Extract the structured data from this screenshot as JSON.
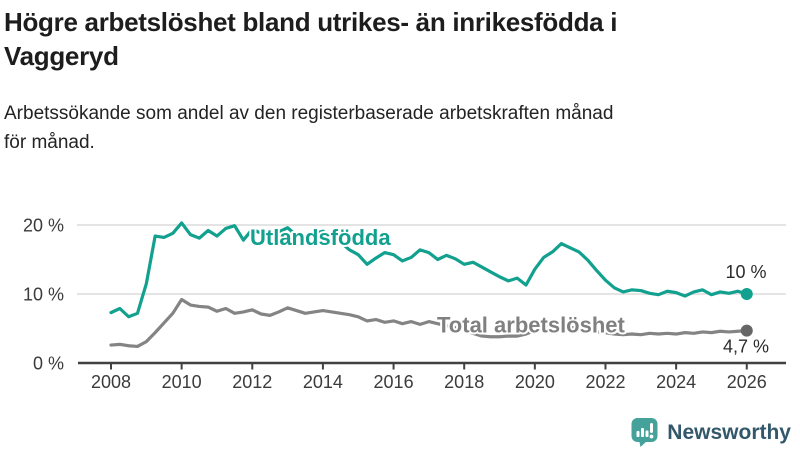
{
  "header": {
    "title_line1": "Högre arbetslöshet bland utrikes- än inrikesfödda i",
    "title_line2": "Vaggeryd",
    "subtitle_line1": "Arbetssökande som andel av den registerbaserade arbetskraften månad",
    "subtitle_line2": "för månad."
  },
  "chart_data": {
    "type": "line",
    "title": "Högre arbetslöshet bland utrikes- än inrikesfödda i Vaggeryd",
    "subtitle": "Arbetssökande som andel av den registerbaserade arbetskraften månad för månad.",
    "y_unit": "%",
    "ylim": [
      0,
      22
    ],
    "xlim": [
      2008,
      2026.2
    ],
    "grid": "horizontal",
    "y_ticks": [
      {
        "value": 20,
        "label": "20 %"
      },
      {
        "value": 10,
        "label": "10 %"
      },
      {
        "value": 0,
        "label": "0 %"
      }
    ],
    "x_ticks": [
      {
        "value": 2008,
        "label": "2008"
      },
      {
        "value": 2010,
        "label": "2010"
      },
      {
        "value": 2012,
        "label": "2012"
      },
      {
        "value": 2014,
        "label": "2014"
      },
      {
        "value": 2016,
        "label": "2016"
      },
      {
        "value": 2018,
        "label": "2018"
      },
      {
        "value": 2020,
        "label": "2020"
      },
      {
        "value": 2022,
        "label": "2022"
      },
      {
        "value": 2024,
        "label": "2024"
      },
      {
        "value": 2026,
        "label": "2026"
      }
    ],
    "series": [
      {
        "name": "Utlandsfödda",
        "color": "#12a08f",
        "dot_color": "#12a08f",
        "end_label": "10 %",
        "end_value": 10.0,
        "points": [
          [
            2008.0,
            7.3
          ],
          [
            2008.25,
            7.9
          ],
          [
            2008.5,
            6.7
          ],
          [
            2008.75,
            7.2
          ],
          [
            2009.0,
            11.5
          ],
          [
            2009.25,
            18.4
          ],
          [
            2009.5,
            18.2
          ],
          [
            2009.75,
            18.8
          ],
          [
            2010.0,
            20.3
          ],
          [
            2010.25,
            18.6
          ],
          [
            2010.5,
            18.1
          ],
          [
            2010.75,
            19.2
          ],
          [
            2011.0,
            18.4
          ],
          [
            2011.25,
            19.5
          ],
          [
            2011.5,
            19.9
          ],
          [
            2011.75,
            17.8
          ],
          [
            2012.0,
            19.4
          ],
          [
            2012.25,
            18.8
          ],
          [
            2012.5,
            18.4
          ],
          [
            2012.75,
            19.0
          ],
          [
            2013.0,
            19.6
          ],
          [
            2013.25,
            18.5
          ],
          [
            2013.5,
            18.1
          ],
          [
            2013.75,
            18.7
          ],
          [
            2014.0,
            19.1
          ],
          [
            2014.25,
            18.2
          ],
          [
            2014.5,
            17.5
          ],
          [
            2014.75,
            16.4
          ],
          [
            2015.0,
            15.7
          ],
          [
            2015.25,
            14.3
          ],
          [
            2015.5,
            15.2
          ],
          [
            2015.75,
            16.0
          ],
          [
            2016.0,
            15.7
          ],
          [
            2016.25,
            14.8
          ],
          [
            2016.5,
            15.3
          ],
          [
            2016.75,
            16.4
          ],
          [
            2017.0,
            16.0
          ],
          [
            2017.25,
            15.0
          ],
          [
            2017.5,
            15.6
          ],
          [
            2017.75,
            15.1
          ],
          [
            2018.0,
            14.3
          ],
          [
            2018.25,
            14.6
          ],
          [
            2018.5,
            13.9
          ],
          [
            2018.75,
            13.2
          ],
          [
            2019.0,
            12.5
          ],
          [
            2019.25,
            11.9
          ],
          [
            2019.5,
            12.3
          ],
          [
            2019.75,
            11.3
          ],
          [
            2020.0,
            13.6
          ],
          [
            2020.25,
            15.3
          ],
          [
            2020.5,
            16.1
          ],
          [
            2020.75,
            17.3
          ],
          [
            2021.0,
            16.7
          ],
          [
            2021.25,
            16.1
          ],
          [
            2021.5,
            14.9
          ],
          [
            2021.75,
            13.4
          ],
          [
            2022.0,
            12.0
          ],
          [
            2022.25,
            10.9
          ],
          [
            2022.5,
            10.3
          ],
          [
            2022.75,
            10.6
          ],
          [
            2023.0,
            10.5
          ],
          [
            2023.25,
            10.1
          ],
          [
            2023.5,
            9.9
          ],
          [
            2023.75,
            10.4
          ],
          [
            2024.0,
            10.2
          ],
          [
            2024.25,
            9.7
          ],
          [
            2024.5,
            10.3
          ],
          [
            2024.75,
            10.6
          ],
          [
            2025.0,
            9.9
          ],
          [
            2025.25,
            10.3
          ],
          [
            2025.5,
            10.1
          ],
          [
            2025.75,
            10.4
          ],
          [
            2026.0,
            10.0
          ]
        ]
      },
      {
        "name": "Total arbetslöshet",
        "color": "#848484",
        "dot_color": "#666666",
        "end_label": "4,7 %",
        "end_value": 4.7,
        "points": [
          [
            2008.0,
            2.6
          ],
          [
            2008.25,
            2.7
          ],
          [
            2008.5,
            2.5
          ],
          [
            2008.75,
            2.4
          ],
          [
            2009.0,
            3.1
          ],
          [
            2009.25,
            4.4
          ],
          [
            2009.5,
            5.8
          ],
          [
            2009.75,
            7.2
          ],
          [
            2010.0,
            9.2
          ],
          [
            2010.25,
            8.4
          ],
          [
            2010.5,
            8.2
          ],
          [
            2010.75,
            8.1
          ],
          [
            2011.0,
            7.5
          ],
          [
            2011.25,
            7.9
          ],
          [
            2011.5,
            7.2
          ],
          [
            2011.75,
            7.4
          ],
          [
            2012.0,
            7.7
          ],
          [
            2012.25,
            7.1
          ],
          [
            2012.5,
            6.9
          ],
          [
            2012.75,
            7.4
          ],
          [
            2013.0,
            8.0
          ],
          [
            2013.25,
            7.6
          ],
          [
            2013.5,
            7.2
          ],
          [
            2013.75,
            7.4
          ],
          [
            2014.0,
            7.6
          ],
          [
            2014.25,
            7.4
          ],
          [
            2014.5,
            7.2
          ],
          [
            2014.75,
            7.0
          ],
          [
            2015.0,
            6.7
          ],
          [
            2015.25,
            6.1
          ],
          [
            2015.5,
            6.3
          ],
          [
            2015.75,
            5.9
          ],
          [
            2016.0,
            6.1
          ],
          [
            2016.25,
            5.7
          ],
          [
            2016.5,
            6.0
          ],
          [
            2016.75,
            5.6
          ],
          [
            2017.0,
            6.0
          ],
          [
            2017.25,
            5.7
          ],
          [
            2017.5,
            5.4
          ],
          [
            2017.75,
            5.1
          ],
          [
            2018.0,
            4.8
          ],
          [
            2018.25,
            4.3
          ],
          [
            2018.5,
            3.9
          ],
          [
            2018.75,
            3.8
          ],
          [
            2019.0,
            3.8
          ],
          [
            2019.25,
            3.9
          ],
          [
            2019.5,
            3.9
          ],
          [
            2019.75,
            4.2
          ],
          [
            2020.0,
            4.7
          ],
          [
            2020.25,
            5.4
          ],
          [
            2020.5,
            5.7
          ],
          [
            2020.75,
            5.5
          ],
          [
            2021.0,
            5.2
          ],
          [
            2021.25,
            4.9
          ],
          [
            2021.5,
            4.7
          ],
          [
            2021.75,
            4.5
          ],
          [
            2022.0,
            4.4
          ],
          [
            2022.25,
            4.2
          ],
          [
            2022.5,
            4.1
          ],
          [
            2022.75,
            4.2
          ],
          [
            2023.0,
            4.1
          ],
          [
            2023.25,
            4.3
          ],
          [
            2023.5,
            4.2
          ],
          [
            2023.75,
            4.3
          ],
          [
            2024.0,
            4.2
          ],
          [
            2024.25,
            4.4
          ],
          [
            2024.5,
            4.3
          ],
          [
            2024.75,
            4.5
          ],
          [
            2025.0,
            4.4
          ],
          [
            2025.25,
            4.6
          ],
          [
            2025.5,
            4.5
          ],
          [
            2025.75,
            4.6
          ],
          [
            2026.0,
            4.7
          ]
        ]
      }
    ]
  },
  "footer": {
    "brand": "Newsworthy",
    "logo_color": "#45a29a",
    "brand_text_color": "#33586b"
  }
}
